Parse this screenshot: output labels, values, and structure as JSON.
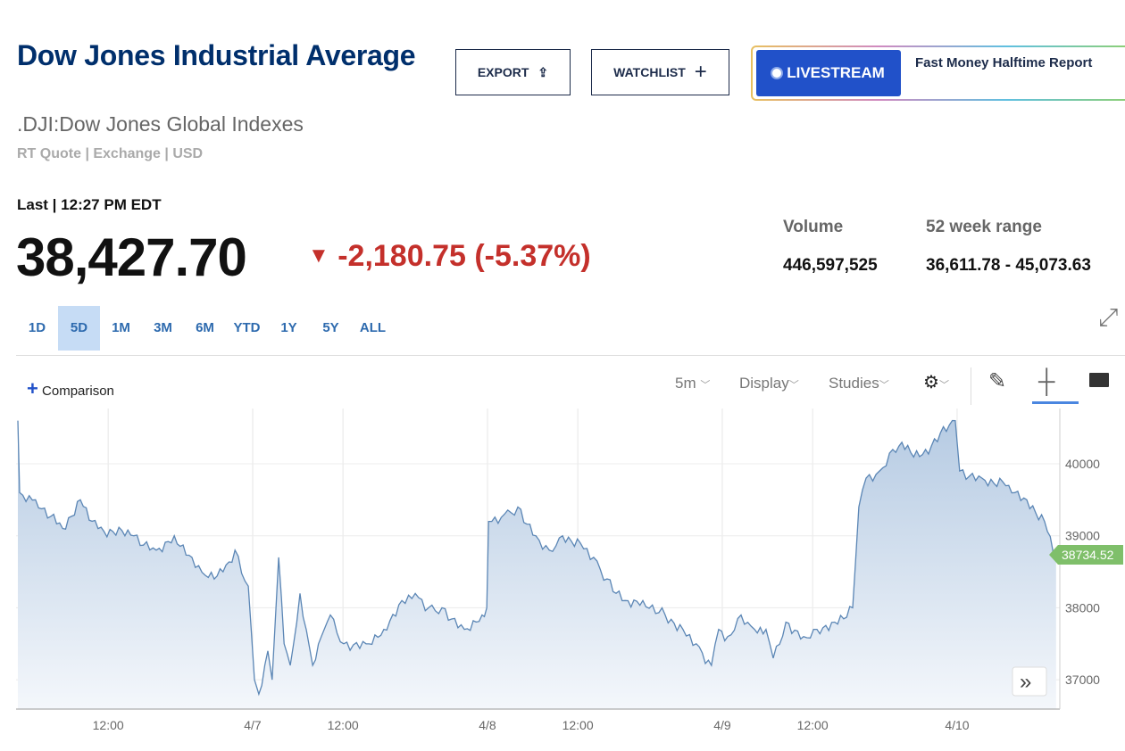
{
  "header": {
    "title": "Dow Jones Industrial Average",
    "symbol": ".DJI:Dow Jones Global Indexes",
    "meta": "RT Quote | Exchange | USD"
  },
  "actions": {
    "export": "EXPORT",
    "watchlist": "WATCHLIST",
    "livestream": "LIVESTREAM",
    "live_show": "Fast Money Halftime Report"
  },
  "quote": {
    "last_label": "Last | 12:27 PM EDT",
    "price": "38,427.70",
    "change": "-2,180.75 (-5.37%)",
    "volume_label": "Volume",
    "volume": "446,597,525",
    "range_label": "52 week range",
    "range": "36,611.78 - 45,073.63"
  },
  "ranges": [
    "1D",
    "5D",
    "1M",
    "3M",
    "6M",
    "YTD",
    "1Y",
    "5Y",
    "ALL"
  ],
  "selected_range": "5D",
  "toolbar": {
    "comparison": "Comparison",
    "interval": "5m",
    "display": "Display",
    "studies": "Studies"
  },
  "colors": {
    "accent": "#2151c9",
    "down": "#c4302b",
    "line": "#5b86b5",
    "last_tag": "#7fbf6a"
  },
  "chart_data": {
    "type": "area",
    "x_unit": "trading hours since 4/4 open",
    "x_ticks": [
      {
        "t": 2.5,
        "label": "12:00"
      },
      {
        "t": 6.5,
        "label": "4/7"
      },
      {
        "t": 9,
        "label": "12:00"
      },
      {
        "t": 13,
        "label": "4/8"
      },
      {
        "t": 15.5,
        "label": "12:00"
      },
      {
        "t": 19.5,
        "label": "4/9"
      },
      {
        "t": 22,
        "label": "12:00"
      },
      {
        "t": 26,
        "label": "4/10"
      }
    ],
    "y_ticks": [
      40000,
      39000,
      38000,
      37000
    ],
    "ylim": [
      36590,
      40770
    ],
    "last_value": "38734.52",
    "points": [
      [
        0,
        40600
      ],
      [
        0.05,
        39600
      ],
      [
        0.49,
        39500
      ],
      [
        1.24,
        39100
      ],
      [
        1.73,
        39500
      ],
      [
        2.22,
        39100
      ],
      [
        3.21,
        39000
      ],
      [
        3.83,
        38800
      ],
      [
        4.33,
        39000
      ],
      [
        4.82,
        38700
      ],
      [
        5.19,
        38450
      ],
      [
        5.68,
        38500
      ],
      [
        6.01,
        38800
      ],
      [
        6.38,
        38300
      ],
      [
        6.55,
        37000
      ],
      [
        6.67,
        36800
      ],
      [
        6.92,
        37400
      ],
      [
        7.04,
        37000
      ],
      [
        7.22,
        38700
      ],
      [
        7.37,
        37500
      ],
      [
        7.54,
        37200
      ],
      [
        7.81,
        38200
      ],
      [
        8.16,
        37200
      ],
      [
        8.4,
        37600
      ],
      [
        8.65,
        37900
      ],
      [
        9.02,
        37500
      ],
      [
        9.64,
        37500
      ],
      [
        10.13,
        37700
      ],
      [
        10.63,
        38100
      ],
      [
        11.0,
        38200
      ],
      [
        11.37,
        38000
      ],
      [
        11.74,
        38000
      ],
      [
        12.36,
        37700
      ],
      [
        12.85,
        37900
      ],
      [
        12.98,
        38000
      ],
      [
        13.03,
        39200
      ],
      [
        13.47,
        39300
      ],
      [
        13.84,
        39400
      ],
      [
        14.34,
        39000
      ],
      [
        14.71,
        38800
      ],
      [
        15.08,
        39000
      ],
      [
        15.57,
        38900
      ],
      [
        15.94,
        38700
      ],
      [
        16.31,
        38400
      ],
      [
        16.81,
        38100
      ],
      [
        17.3,
        38100
      ],
      [
        17.92,
        37900
      ],
      [
        18.41,
        37700
      ],
      [
        18.78,
        37500
      ],
      [
        19.2,
        37200
      ],
      [
        19.4,
        37700
      ],
      [
        19.65,
        37600
      ],
      [
        20.02,
        37900
      ],
      [
        20.39,
        37700
      ],
      [
        20.71,
        37700
      ],
      [
        20.91,
        37300
      ],
      [
        21.26,
        37800
      ],
      [
        21.75,
        37600
      ],
      [
        22.12,
        37700
      ],
      [
        22.61,
        37800
      ],
      [
        23.11,
        38000
      ],
      [
        23.28,
        39400
      ],
      [
        23.48,
        39800
      ],
      [
        23.85,
        39900
      ],
      [
        24.22,
        40200
      ],
      [
        24.47,
        40300
      ],
      [
        24.96,
        40100
      ],
      [
        25.95,
        40600
      ],
      [
        26.07,
        39900
      ],
      [
        26.69,
        39800
      ],
      [
        27.43,
        39700
      ],
      [
        27.93,
        39500
      ],
      [
        28.42,
        39200
      ],
      [
        28.74,
        38734.52
      ]
    ]
  }
}
